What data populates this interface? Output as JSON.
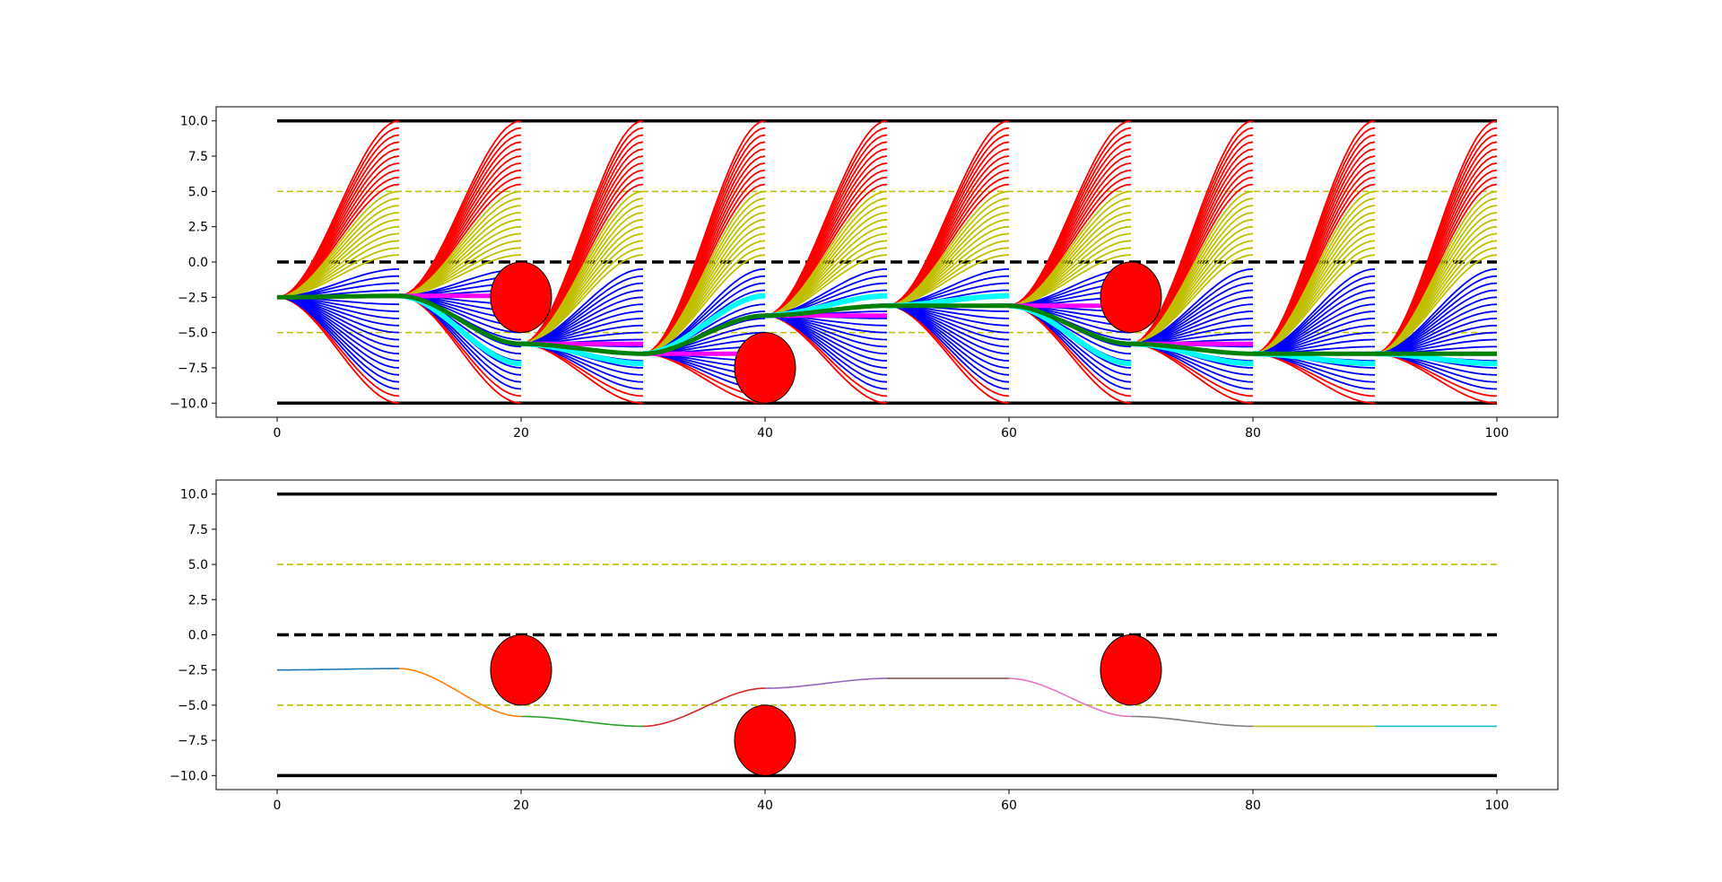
{
  "chart_data": [
    {
      "type": "line",
      "title": "",
      "xlabel": "",
      "ylabel": "",
      "xlim": [
        -5,
        105
      ],
      "ylim": [
        -11,
        11
      ],
      "xticks": [
        0,
        20,
        40,
        60,
        80,
        100
      ],
      "yticks": [
        -10.0,
        -7.5,
        -5.0,
        -2.5,
        0.0,
        2.5,
        5.0,
        7.5,
        10.0
      ],
      "xtick_labels": [
        "0",
        "20",
        "40",
        "60",
        "80",
        "100"
      ],
      "ytick_labels": [
        "−10.0",
        "−7.5",
        "−5.0",
        "−2.5",
        "0.0",
        "2.5",
        "5.0",
        "7.5",
        "10.0"
      ],
      "grid": false,
      "road": {
        "x": [
          0,
          100
        ],
        "boundaries": [
          10,
          -10
        ],
        "centerline": 0,
        "lane_markers": [
          5,
          -5
        ]
      },
      "obstacles": [
        {
          "x": 20,
          "y": -2.5,
          "rx": 2.5,
          "ry": 2.5
        },
        {
          "x": 40,
          "y": -7.5,
          "rx": 2.5,
          "ry": 2.5
        },
        {
          "x": 70,
          "y": -2.5,
          "rx": 2.5,
          "ry": 2.5
        }
      ],
      "candidate_fans": [
        {
          "x_start": 0,
          "y_start": -2.5
        },
        {
          "x_start": 10,
          "y_start": -2.4
        },
        {
          "x_start": 20,
          "y_start": -5.8
        },
        {
          "x_start": 30,
          "y_start": -6.5
        },
        {
          "x_start": 40,
          "y_start": -3.8
        },
        {
          "x_start": 50,
          "y_start": -3.1
        },
        {
          "x_start": 60,
          "y_start": -3.1
        },
        {
          "x_start": 70,
          "y_start": -5.8
        },
        {
          "x_start": 80,
          "y_start": -6.5
        },
        {
          "x_start": 90,
          "y_start": -6.5
        }
      ],
      "fan_segment_length": 10,
      "fan_targets": {
        "red": [
          10.0,
          9.5,
          9.0,
          8.5,
          8.0,
          7.5,
          7.0,
          6.5,
          6.0,
          5.5,
          -10.0,
          -9.5
        ],
        "yellow_upper": [
          5.0,
          4.5,
          4.0,
          3.5,
          3.0,
          2.5,
          2.0,
          1.5,
          1.0,
          0.5
        ],
        "blue": [
          -0.5,
          -1.0,
          -1.5,
          -2.0,
          -2.5,
          -3.0,
          -3.5,
          -4.0,
          -4.5,
          -5.0,
          -5.5,
          -6.0,
          -6.5,
          -7.0,
          -7.5,
          -8.0,
          -8.5,
          -9.0
        ]
      },
      "selected_path_x": [
        0,
        10,
        20,
        30,
        40,
        50,
        60,
        70,
        80,
        90,
        100
      ],
      "selected_path_y": [
        -2.5,
        -2.4,
        -5.8,
        -6.5,
        -3.8,
        -3.1,
        -3.1,
        -5.8,
        -6.5,
        -6.5,
        -6.5
      ],
      "highlight_segments": {
        "cyan": [
          {
            "x0": 10,
            "y0": -2.4,
            "y1": -7.2
          },
          {
            "x0": 20,
            "y0": -5.8,
            "y1": -7.2
          },
          {
            "x0": 30,
            "y0": -6.5,
            "y1": -2.4
          },
          {
            "x0": 40,
            "y0": -3.8,
            "y1": -2.4
          },
          {
            "x0": 50,
            "y0": -3.1,
            "y1": -2.4
          },
          {
            "x0": 60,
            "y0": -3.1,
            "y1": -7.2
          },
          {
            "x0": 70,
            "y0": -5.8,
            "y1": -7.2
          },
          {
            "x0": 80,
            "y0": -6.5,
            "y1": -7.2
          },
          {
            "x0": 90,
            "y0": -6.5,
            "y1": -7.2
          }
        ],
        "magenta": [
          {
            "x0": 10,
            "y": -2.4
          },
          {
            "x0": 20,
            "y": -5.8
          },
          {
            "x0": 30,
            "y": -6.5
          },
          {
            "x0": 40,
            "y": -3.8
          },
          {
            "x0": 60,
            "y": -3.1
          },
          {
            "x0": 70,
            "y": -5.8
          }
        ]
      },
      "colors": {
        "boundary": "#000000",
        "lane_marker": "#bfbf00",
        "obstacle_fill": "#ff0000",
        "fan_red": "#ff0000",
        "fan_yellow": "#bfbf00",
        "fan_blue": "#0000ff",
        "selected": "#008000",
        "cyan": "#00ffff",
        "magenta": "#ff00ff"
      }
    },
    {
      "type": "line",
      "title": "",
      "xlabel": "",
      "ylabel": "",
      "xlim": [
        -5,
        105
      ],
      "ylim": [
        -11,
        11
      ],
      "xticks": [
        0,
        20,
        40,
        60,
        80,
        100
      ],
      "yticks": [
        -10.0,
        -7.5,
        -5.0,
        -2.5,
        0.0,
        2.5,
        5.0,
        7.5,
        10.0
      ],
      "xtick_labels": [
        "0",
        "20",
        "40",
        "60",
        "80",
        "100"
      ],
      "ytick_labels": [
        "−10.0",
        "−7.5",
        "−5.0",
        "−2.5",
        "0.0",
        "2.5",
        "5.0",
        "7.5",
        "10.0"
      ],
      "grid": false,
      "road": {
        "x": [
          0,
          100
        ],
        "boundaries": [
          10,
          -10
        ],
        "centerline": 0,
        "lane_markers": [
          5,
          -5
        ]
      },
      "obstacles": [
        {
          "x": 20,
          "y": -2.5,
          "rx": 2.5,
          "ry": 2.5
        },
        {
          "x": 40,
          "y": -7.5,
          "rx": 2.5,
          "ry": 2.5
        },
        {
          "x": 70,
          "y": -2.5,
          "rx": 2.5,
          "ry": 2.5
        }
      ],
      "series": [
        {
          "x": [
            0,
            10
          ],
          "y": [
            -2.5,
            -2.4
          ],
          "color": "#1f77b4"
        },
        {
          "x": [
            10,
            20
          ],
          "y": [
            -2.4,
            -5.8
          ],
          "color": "#ff7f0e"
        },
        {
          "x": [
            20,
            30
          ],
          "y": [
            -5.8,
            -6.5
          ],
          "color": "#2ca02c"
        },
        {
          "x": [
            30,
            40
          ],
          "y": [
            -6.5,
            -3.8
          ],
          "color": "#d62728"
        },
        {
          "x": [
            40,
            50
          ],
          "y": [
            -3.8,
            -3.1
          ],
          "color": "#9467bd"
        },
        {
          "x": [
            50,
            60
          ],
          "y": [
            -3.1,
            -3.1
          ],
          "color": "#8c564b"
        },
        {
          "x": [
            60,
            70
          ],
          "y": [
            -3.1,
            -5.8
          ],
          "color": "#e377c2"
        },
        {
          "x": [
            70,
            80
          ],
          "y": [
            -5.8,
            -6.5
          ],
          "color": "#7f7f7f"
        },
        {
          "x": [
            80,
            90
          ],
          "y": [
            -6.5,
            -6.5
          ],
          "color": "#bcbd22"
        },
        {
          "x": [
            90,
            100
          ],
          "y": [
            -6.5,
            -6.5
          ],
          "color": "#17becf"
        }
      ],
      "colors": {
        "boundary": "#000000",
        "lane_marker": "#bfbf00",
        "obstacle_fill": "#ff0000"
      }
    }
  ]
}
